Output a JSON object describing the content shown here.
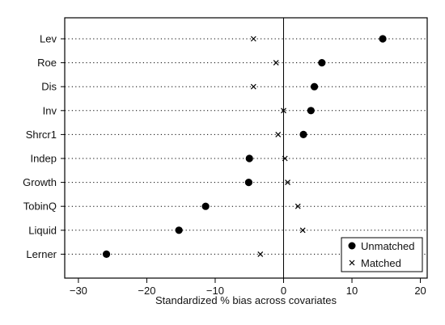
{
  "chart_data": {
    "type": "scatter",
    "xlabel": "Standardized % bias across covariates",
    "xlim": [
      -32,
      21
    ],
    "xticks": [
      -30,
      -20,
      -10,
      0,
      10,
      20
    ],
    "xtick_labels": [
      "−30",
      "−20",
      "−10",
      "0",
      "10",
      "20"
    ],
    "categories": [
      "Lev",
      "Roe",
      "Dis",
      "Inv",
      "Shrcr1",
      "Indep",
      "Growth",
      "TobinQ",
      "Liquid",
      "Lerner"
    ],
    "reference_line_x": 0,
    "grid": "dotted horizontal lines per covariate",
    "legend_position": "bottom-right",
    "series": [
      {
        "name": "Unmatched",
        "marker": "filled-circle",
        "values": [
          14.5,
          5.6,
          4.5,
          4.0,
          2.9,
          -5.0,
          -5.1,
          -11.4,
          -15.3,
          -25.9
        ]
      },
      {
        "name": "Matched",
        "marker": "x",
        "values": [
          -4.4,
          -1.1,
          -4.4,
          0.0,
          -0.8,
          0.2,
          0.6,
          2.1,
          2.8,
          -3.4
        ]
      }
    ],
    "colors": {
      "marker": "#000000",
      "frame": "#000000",
      "grid": "#000000",
      "reference_line": "#000000"
    }
  }
}
